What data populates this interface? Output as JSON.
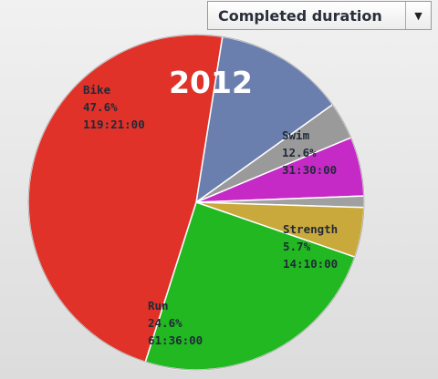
{
  "dropdown": {
    "selected": "Completed duration"
  },
  "chart_data": {
    "type": "pie",
    "title": "2012",
    "slices": [
      {
        "name": "Swim",
        "percent": 12.6,
        "duration": "31:30:00",
        "color": "#6b7fae",
        "labeled": true
      },
      {
        "name": "",
        "percent": 3.6,
        "duration": "",
        "color": "#9a9a9a",
        "labeled": false
      },
      {
        "name": "Strength",
        "percent": 5.7,
        "duration": "14:10:00",
        "color": "#c62ac6",
        "labeled": true
      },
      {
        "name": "",
        "percent": 1.1,
        "duration": "",
        "color": "#a0a0a0",
        "labeled": false
      },
      {
        "name": "",
        "percent": 4.8,
        "duration": "",
        "color": "#c9a83c",
        "labeled": false
      },
      {
        "name": "Run",
        "percent": 24.6,
        "duration": "61:36:00",
        "color": "#22b822",
        "labeled": true
      },
      {
        "name": "Bike",
        "percent": 47.6,
        "duration": "119:21:00",
        "color": "#e03228",
        "labeled": true
      }
    ]
  }
}
